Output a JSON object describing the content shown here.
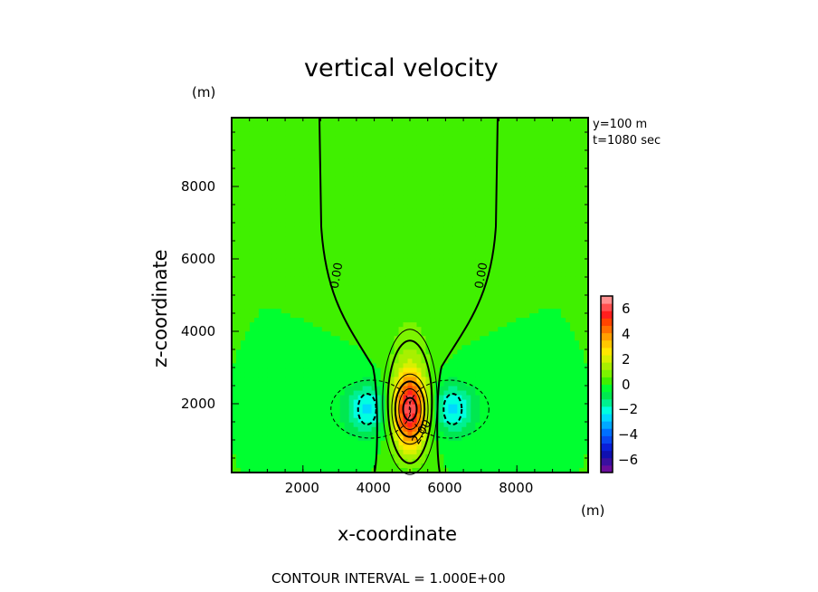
{
  "chart_data": {
    "type": "heatmap",
    "title": "vertical velocity",
    "xlabel": "x-coordinate",
    "ylabel": "z-coordinate",
    "x_unit": "(m)",
    "y_unit": "(m)",
    "xlim": [
      0,
      10000
    ],
    "ylim": [
      100,
      9900
    ],
    "xticks": [
      "2000",
      "4000",
      "6000",
      "8000"
    ],
    "yticks": [
      "2000",
      "4000",
      "6000",
      "8000"
    ],
    "annotations": [
      "y=100 m",
      "t=1080 sec"
    ],
    "footer": "CONTOUR INTERVAL = 1.000E+00",
    "contour_interval": 1.0,
    "contour_labels": [
      "0.00",
      "0.00",
      "2.00"
    ],
    "updraft_center": {
      "x": 5000,
      "z": 1850,
      "max": 6.5
    },
    "downdraft_centers": [
      {
        "x": 3800,
        "z": 1850,
        "min": -2.5
      },
      {
        "x": 6200,
        "z": 1850,
        "min": -2.5
      }
    ],
    "colorbar": {
      "range": [
        -7,
        7
      ],
      "ticks": [
        "6",
        "4",
        "2",
        "0",
        "-2",
        "-4",
        "-6"
      ],
      "colors": [
        "#6a0d9c",
        "#3a0fa0",
        "#1010b0",
        "#0a1fd8",
        "#0848f0",
        "#0070ff",
        "#00a8ff",
        "#00d8ff",
        "#00ffe0",
        "#00f090",
        "#00e850",
        "#00ff30",
        "#40f000",
        "#7cf400",
        "#a8f000",
        "#d8f000",
        "#ffe800",
        "#ffc800",
        "#ffa000",
        "#ff7000",
        "#ff4400",
        "#ff1e1e",
        "#ff5050",
        "#ff9090"
      ]
    }
  }
}
